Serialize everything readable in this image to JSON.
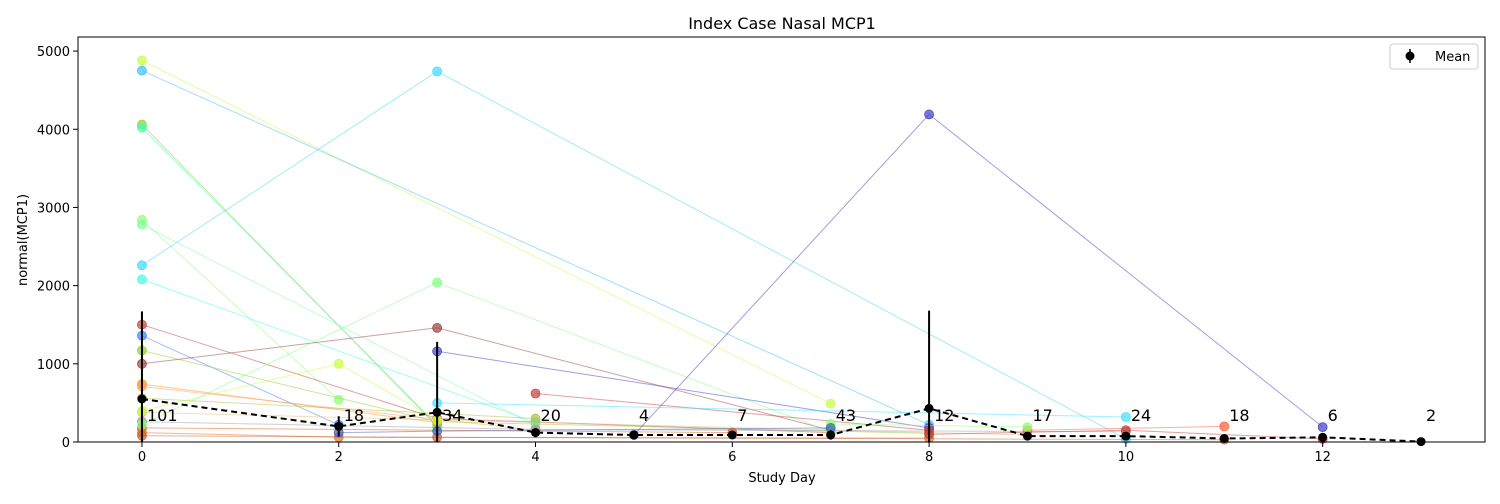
{
  "chart_data": {
    "type": "line",
    "title": "Index Case Nasal MCP1",
    "xlabel": "Study Day",
    "ylabel": "normal(MCP1)",
    "xlim": [
      -0.65,
      13.65
    ],
    "ylim": [
      0,
      5180
    ],
    "xticks": [
      0,
      2,
      4,
      6,
      8,
      10,
      12
    ],
    "yticks": [
      0,
      1000,
      2000,
      3000,
      4000,
      5000
    ],
    "grid": false,
    "legend": {
      "position": "top-right",
      "entries": [
        "Mean"
      ]
    },
    "mean_series": {
      "name": "Mean",
      "color": "#000000",
      "style": "dashed",
      "points": [
        {
          "x": 0,
          "y": 550,
          "err": 1120
        },
        {
          "x": 2,
          "y": 200,
          "err": 130
        },
        {
          "x": 3,
          "y": 380,
          "err": 900
        },
        {
          "x": 4,
          "y": 120,
          "err": 60
        },
        {
          "x": 5,
          "y": 90,
          "err": 20
        },
        {
          "x": 6,
          "y": 90,
          "err": 30
        },
        {
          "x": 7,
          "y": 90,
          "err": 60
        },
        {
          "x": 8,
          "y": 430,
          "err": 1250
        },
        {
          "x": 9,
          "y": 75,
          "err": 20
        },
        {
          "x": 10,
          "y": 75,
          "err": 25
        },
        {
          "x": 11,
          "y": 45,
          "err": 15
        },
        {
          "x": 12,
          "y": 60,
          "err": 20
        },
        {
          "x": 13,
          "y": 5,
          "err": 0
        }
      ]
    },
    "counts": [
      {
        "x": 0,
        "label": "101"
      },
      {
        "x": 2,
        "label": "18"
      },
      {
        "x": 3,
        "label": "34"
      },
      {
        "x": 4,
        "label": "20"
      },
      {
        "x": 5,
        "label": "4"
      },
      {
        "x": 6,
        "label": "7"
      },
      {
        "x": 7,
        "label": "43"
      },
      {
        "x": 8,
        "label": "12"
      },
      {
        "x": 9,
        "label": "17"
      },
      {
        "x": 10,
        "label": "24"
      },
      {
        "x": 11,
        "label": "18"
      },
      {
        "x": 12,
        "label": "6"
      },
      {
        "x": 13,
        "label": "2"
      }
    ],
    "subject_series": [
      {
        "color": "#c8ff40",
        "points": [
          [
            0,
            4880
          ],
          [
            7,
            490
          ]
        ]
      },
      {
        "color": "#40c0ff",
        "points": [
          [
            0,
            4750
          ],
          [
            8,
            220
          ]
        ]
      },
      {
        "color": "#9acd32",
        "points": [
          [
            0,
            4060
          ],
          [
            3,
            200
          ]
        ]
      },
      {
        "color": "#40ffb0",
        "points": [
          [
            0,
            4020
          ],
          [
            3,
            220
          ]
        ]
      },
      {
        "color": "#8fff70",
        "points": [
          [
            0,
            2840
          ],
          [
            2,
            540
          ]
        ]
      },
      {
        "color": "#80ffa0",
        "points": [
          [
            0,
            2780
          ],
          [
            4,
            210
          ]
        ]
      },
      {
        "color": "#40d8ff",
        "points": [
          [
            0,
            2260
          ],
          [
            3,
            4740
          ],
          [
            10,
            40
          ]
        ]
      },
      {
        "color": "#40ffe0",
        "points": [
          [
            0,
            2080
          ],
          [
            4,
            250
          ]
        ]
      },
      {
        "color": "#c84040",
        "points": [
          [
            0,
            1500
          ],
          [
            3,
            300
          ],
          [
            7,
            120
          ]
        ]
      },
      {
        "color": "#4080ff",
        "points": [
          [
            0,
            1360
          ],
          [
            2,
            220
          ]
        ]
      },
      {
        "color": "#9acd32",
        "points": [
          [
            0,
            1170
          ],
          [
            3,
            260
          ],
          [
            8,
            110
          ]
        ]
      },
      {
        "color": "#a04040",
        "points": [
          [
            0,
            1000
          ],
          [
            3,
            1460
          ],
          [
            7,
            150
          ]
        ]
      },
      {
        "color": "#ff9020",
        "points": [
          [
            0,
            740
          ],
          [
            3,
            250
          ]
        ]
      },
      {
        "color": "#ffa060",
        "points": [
          [
            0,
            710
          ],
          [
            4,
            150
          ]
        ]
      },
      {
        "color": "#b0c040",
        "points": [
          [
            0,
            560
          ],
          [
            4,
            300
          ]
        ]
      },
      {
        "color": "#e0c080",
        "points": [
          [
            0,
            380
          ],
          [
            9,
            90
          ]
        ]
      },
      {
        "color": "#a0a0a0",
        "points": [
          [
            0,
            260
          ],
          [
            4,
            160
          ],
          [
            10,
            130
          ]
        ]
      },
      {
        "color": "#e06020",
        "points": [
          [
            0,
            180
          ],
          [
            6,
            120
          ]
        ]
      },
      {
        "color": "#e07020",
        "points": [
          [
            0,
            120
          ],
          [
            2,
            60
          ],
          [
            8,
            50
          ]
        ]
      },
      {
        "color": "#d06030",
        "points": [
          [
            0,
            80
          ],
          [
            3,
            60
          ],
          [
            11,
            30
          ]
        ]
      },
      {
        "color": "#c8ff40",
        "points": [
          [
            0,
            400
          ],
          [
            2,
            1000
          ],
          [
            3,
            280
          ]
        ]
      },
      {
        "color": "#80ff80",
        "points": [
          [
            0,
            220
          ],
          [
            3,
            2040
          ],
          [
            7,
            130
          ]
        ]
      },
      {
        "color": "#4040c8",
        "points": [
          [
            3,
            1160
          ],
          [
            8,
            180
          ]
        ]
      },
      {
        "color": "#c84040",
        "points": [
          [
            4,
            620
          ],
          [
            8,
            150
          ]
        ]
      },
      {
        "color": "#4040c8",
        "points": [
          [
            5,
            90
          ],
          [
            8,
            4190
          ],
          [
            12,
            190
          ]
        ]
      },
      {
        "color": "#40e0ff",
        "points": [
          [
            3,
            500
          ],
          [
            10,
            320
          ]
        ]
      },
      {
        "color": "#ff6040",
        "points": [
          [
            9,
            150
          ],
          [
            11,
            200
          ]
        ]
      },
      {
        "color": "#8fff70",
        "points": [
          [
            7,
            230
          ],
          [
            9,
            190
          ]
        ]
      },
      {
        "color": "#4060c0",
        "points": [
          [
            2,
            120
          ],
          [
            3,
            140
          ],
          [
            7,
            180
          ]
        ]
      },
      {
        "color": "#c04040",
        "points": [
          [
            8,
            100
          ],
          [
            10,
            150
          ],
          [
            12,
            40
          ]
        ]
      }
    ]
  }
}
